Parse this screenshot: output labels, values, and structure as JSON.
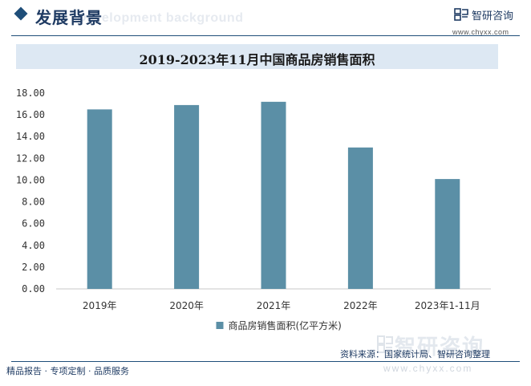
{
  "header": {
    "section_title": "发展背景",
    "section_subtitle": "Development background",
    "logo_name": "智研咨询",
    "logo_url": "www.chyxx.com"
  },
  "footer": {
    "source": "资料来源：国家统计局、智研咨询整理",
    "tagline": "精品报告 · 专项定制 · 品质服务",
    "url": "www.chyxx.com",
    "watermark": "智研咨询"
  },
  "chart_data": {
    "type": "bar",
    "title": "2019-2023年11月中国商品房销售面积",
    "categories": [
      "2019年",
      "2020年",
      "2021年",
      "2022年",
      "2023年1-11月"
    ],
    "series": [
      {
        "name": "商品房销售面积(亿平方米)",
        "values": [
          16.5,
          16.9,
          17.2,
          13.0,
          10.1
        ]
      }
    ],
    "yticks": [
      "0.00",
      "2.00",
      "4.00",
      "6.00",
      "8.00",
      "10.00",
      "12.00",
      "14.00",
      "16.00",
      "18.00"
    ],
    "ylim": [
      0,
      18
    ],
    "legend_position": "bottom",
    "grid": false,
    "colors": {
      "bar": "#5b8fa6",
      "accent": "#1f4e79",
      "band": "#dde8f3"
    }
  }
}
